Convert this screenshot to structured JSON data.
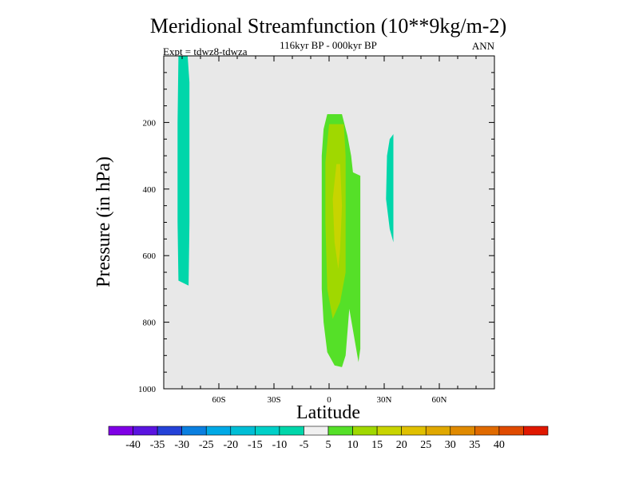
{
  "chart_data": {
    "type": "contour",
    "title": "Meridional Streamfunction (10**9kg/m-2)",
    "subtitle": "116kyr BP - 000kyr BP",
    "left_label": "Expt = tdwz8-tdwza",
    "right_label": "ANN",
    "xlabel": "Latitude",
    "ylabel": "Pressure (in hPa)",
    "xlim": [
      -90,
      90
    ],
    "ylim": [
      1000,
      0
    ],
    "x_ticks": [
      {
        "value": -60,
        "label": "60S"
      },
      {
        "value": -30,
        "label": "30S"
      },
      {
        "value": 0,
        "label": "0"
      },
      {
        "value": 30,
        "label": "30N"
      },
      {
        "value": 60,
        "label": "60N"
      }
    ],
    "y_ticks": [
      {
        "value": 200,
        "label": "200"
      },
      {
        "value": 400,
        "label": "400"
      },
      {
        "value": 600,
        "label": "600"
      },
      {
        "value": 800,
        "label": "800"
      },
      {
        "value": 1000,
        "label": "1000"
      }
    ],
    "plot_background": "#e8e8e8",
    "regions": [
      {
        "level_range": [
          -10,
          -5
        ],
        "color": "#00d6aa",
        "points": [
          [
            -82,
            0
          ],
          [
            -77,
            0
          ],
          [
            -76,
            80
          ],
          [
            -76,
            300
          ],
          [
            -76,
            500
          ],
          [
            -76.5,
            690
          ],
          [
            -82,
            675
          ],
          [
            -82.5,
            500
          ],
          [
            -82.5,
            200
          ]
        ]
      },
      {
        "level_range": [
          -10,
          -5
        ],
        "color": "#00d6aa",
        "points": [
          [
            33,
            250
          ],
          [
            35,
            235
          ],
          [
            35,
            360
          ],
          [
            35,
            560
          ],
          [
            33,
            520
          ],
          [
            31,
            430
          ],
          [
            31.5,
            300
          ]
        ]
      },
      {
        "level_range": [
          5,
          10
        ],
        "color": "#55e028",
        "points": [
          [
            -1,
            175
          ],
          [
            7,
            175
          ],
          [
            10,
            240
          ],
          [
            12,
            300
          ],
          [
            13,
            350
          ],
          [
            17,
            360
          ],
          [
            17,
            600
          ],
          [
            17,
            880
          ],
          [
            16,
            920
          ],
          [
            11,
            760
          ],
          [
            9,
            900
          ],
          [
            7,
            935
          ],
          [
            3,
            930
          ],
          [
            -1,
            890
          ],
          [
            -3,
            800
          ],
          [
            -4,
            700
          ],
          [
            -4,
            500
          ],
          [
            -4,
            300
          ],
          [
            -3,
            220
          ]
        ]
      },
      {
        "level_range": [
          10,
          15
        ],
        "color": "#a0d800",
        "points": [
          [
            0,
            205
          ],
          [
            8,
            205
          ],
          [
            9,
            300
          ],
          [
            9,
            500
          ],
          [
            9,
            650
          ],
          [
            6,
            740
          ],
          [
            2,
            790
          ],
          [
            -1,
            700
          ],
          [
            -2,
            500
          ],
          [
            -2,
            320
          ]
        ]
      },
      {
        "level_range": [
          15,
          20
        ],
        "color": "#c8d400",
        "points": [
          [
            4,
            325
          ],
          [
            6,
            325
          ],
          [
            7,
            450
          ],
          [
            6,
            580
          ],
          [
            5,
            640
          ],
          [
            3,
            560
          ],
          [
            2,
            430
          ]
        ]
      }
    ],
    "colorbar": {
      "colors": [
        "#7f00e6",
        "#5a14e0",
        "#2442d8",
        "#0a7fe0",
        "#00a9e6",
        "#00bed6",
        "#00d0c8",
        "#00d6aa",
        "#f0f0f0",
        "#55e028",
        "#a0d800",
        "#c8d400",
        "#e0c000",
        "#e0a800",
        "#e08a00",
        "#e06a00",
        "#e04a00",
        "#e01800"
      ],
      "labels": [
        "-40",
        "-35",
        "-30",
        "-25",
        "-20",
        "-15",
        "-10",
        "-5",
        "5",
        "10",
        "15",
        "20",
        "25",
        "30",
        "35",
        "40"
      ]
    }
  }
}
